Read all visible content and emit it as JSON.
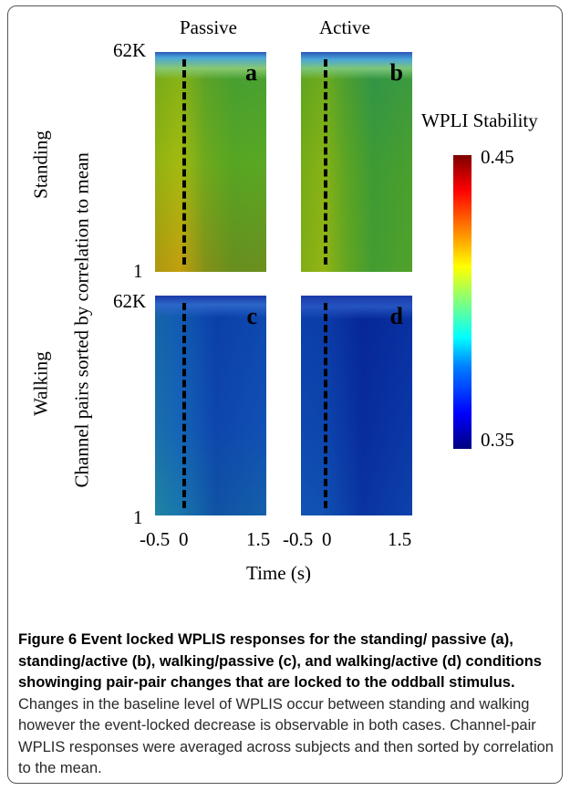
{
  "figure": {
    "column_labels": [
      "Passive",
      "Active"
    ],
    "row_labels": [
      "Standing",
      "Walking"
    ],
    "y_axis_label": "Channel pairs sorted by correlation to mean",
    "y_ticks": {
      "top": "62K",
      "bottom": "1"
    },
    "x_ticks": [
      "-0.5",
      "0",
      "1.5"
    ],
    "x_axis_label": "Time (s)",
    "panel_letters": [
      "a",
      "b",
      "c",
      "d"
    ],
    "colorbar": {
      "title": "WPLI Stability",
      "max": "0.45",
      "min": "0.35"
    }
  },
  "caption": {
    "bold": "Figure 6 Event locked WPLIS responses for the standing/ passive (a), standing/active (b), walking/passive (c), and walking/active (d) conditions showinging pair-pair changes that are locked to the oddball stimulus.",
    "body": "Changes in the baseline level of WPLIS occur between standing and walking however the event-locked decrease is observable in both cases. Channel-pair WPLIS responses were averaged across subjects and then sorted by correlation to the mean."
  }
}
